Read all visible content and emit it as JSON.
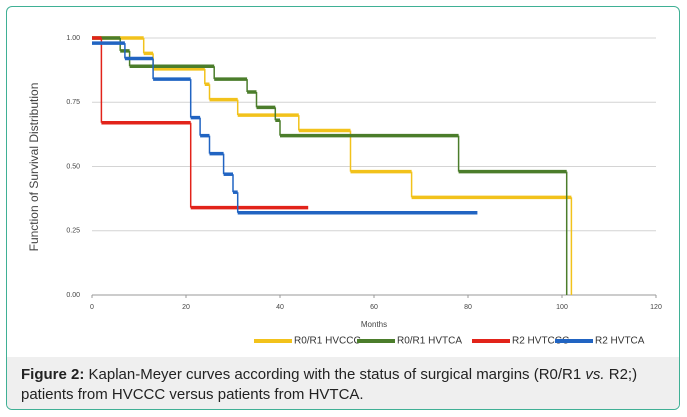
{
  "chart_data": {
    "type": "step",
    "y_label": "Function of Survival Distribution",
    "x_label": "Months",
    "xlim": [
      0,
      120
    ],
    "xticks": [
      0,
      20,
      40,
      60,
      80,
      100,
      120
    ],
    "ylim": [
      0,
      1
    ],
    "yticks": [
      {
        "value": 0,
        "label": "0.00"
      },
      {
        "value": 0.25,
        "label": "0.25"
      },
      {
        "value": 0.5,
        "label": "0.50"
      },
      {
        "value": 0.75,
        "label": "0.75"
      },
      {
        "value": 1,
        "label": "1.00"
      }
    ],
    "grid": true,
    "series": [
      {
        "name": "R0/R1 HVCCC",
        "color": "#f2c21b",
        "x": [
          0,
          11,
          13,
          24,
          25,
          31,
          44,
          55,
          68,
          102
        ],
        "values": [
          1,
          0.94,
          0.88,
          0.82,
          0.76,
          0.7,
          0.64,
          0.48,
          0.38,
          0
        ]
      },
      {
        "name": "R0/R1 HVTCA",
        "color": "#4b7d2b",
        "x": [
          0,
          6,
          8,
          26,
          33,
          35,
          39,
          40,
          78,
          101
        ],
        "values": [
          1,
          0.95,
          0.89,
          0.84,
          0.79,
          0.73,
          0.68,
          0.62,
          0.48,
          0
        ]
      },
      {
        "name": "R2 HVTCCC",
        "color": "#e2231a",
        "x": [
          0,
          2,
          21,
          46
        ],
        "values": [
          1,
          0.67,
          0.34,
          0.34
        ]
      },
      {
        "name": "R2 HVTCA",
        "color": "#2164c2",
        "x": [
          0,
          7,
          13,
          21,
          23,
          25,
          28,
          30,
          31,
          82
        ],
        "values": [
          0.98,
          0.92,
          0.84,
          0.69,
          0.62,
          0.55,
          0.47,
          0.4,
          0.32,
          0.32
        ]
      }
    ]
  },
  "caption": {
    "label": "Figure 2:",
    "text_before": " Kaplan-Meyer curves according with the status of surgical margins (R0/R1 ",
    "text_italic": "vs.",
    "text_after": " R2;) patients from HVCCC versus patients from HVTCA."
  }
}
